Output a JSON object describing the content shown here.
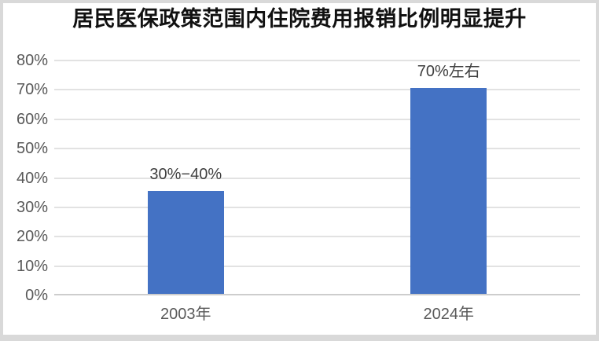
{
  "chart_data": {
    "type": "bar",
    "title": "居民医保政策范围内住院费用报销比例明显提升",
    "categories": [
      "2003年",
      "2024年"
    ],
    "values": [
      35,
      70
    ],
    "data_labels": [
      "30%−40%",
      "70%左右"
    ],
    "series_note": "single series, reimbursement ratio of hospitalization costs within policy scope",
    "ylim": [
      0,
      80
    ],
    "ytick_step": 10,
    "yticks": [
      "0%",
      "10%",
      "20%",
      "30%",
      "40%",
      "50%",
      "60%",
      "70%",
      "80%"
    ],
    "xlabel": "",
    "ylabel": "",
    "grid": "horizontal",
    "legend": "none",
    "colors": {
      "bar": "#4472c4",
      "gridline": "#e2e2e2",
      "axis_line": "#cdcdcd",
      "title_text": "#111111",
      "tick_text": "#595959",
      "data_label_text": "#3f3f3f",
      "card_background": "#ffffff",
      "frame_shadow": "#d9d9d9"
    }
  }
}
